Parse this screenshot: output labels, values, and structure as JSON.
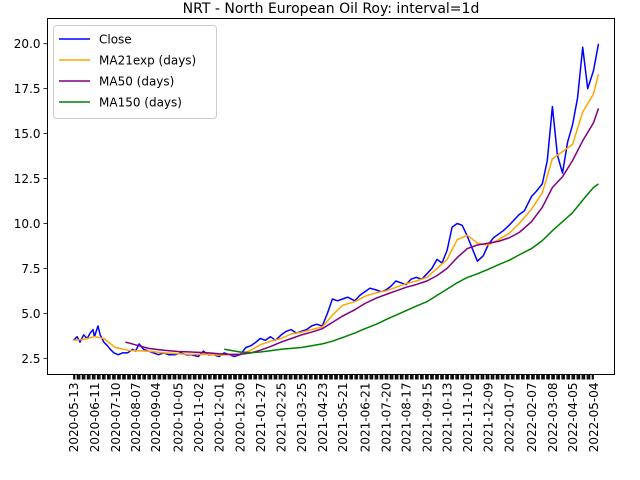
{
  "chart_data": {
    "type": "line",
    "title": "NRT - North European Oil Roy: interval=1d",
    "xlabel": "",
    "ylabel": "",
    "ylim": [
      1.6,
      21.4
    ],
    "grid": false,
    "legend_position": "upper-left",
    "x_tick_labels": [
      "2020-05-13",
      "2020-06-11",
      "2020-07-10",
      "2020-08-07",
      "2020-09-04",
      "2020-10-05",
      "2020-11-02",
      "2020-12-01",
      "2020-12-30",
      "2021-01-27",
      "2021-02-25",
      "2021-03-25",
      "2021-04-23",
      "2021-05-21",
      "2021-06-21",
      "2021-07-20",
      "2021-08-17",
      "2021-09-15",
      "2021-10-13",
      "2021-11-10",
      "2021-12-09",
      "2022-01-07",
      "2022-02-07",
      "2022-03-08",
      "2022-04-05",
      "2022-05-04"
    ],
    "y_ticks": [
      "2.5",
      "5.0",
      "7.5",
      "10.0",
      "12.5",
      "15.0",
      "17.5",
      "20.0"
    ],
    "y_tick_values": [
      2.5,
      5.0,
      7.5,
      10.0,
      12.5,
      15.0,
      17.5,
      20.0
    ],
    "series": [
      {
        "name": "Close",
        "color": "#0000ff",
        "points": [
          [
            "2020-05-13",
            3.5
          ],
          [
            "2020-05-18",
            3.7
          ],
          [
            "2020-05-22",
            3.4
          ],
          [
            "2020-05-27",
            3.8
          ],
          [
            "2020-06-01",
            3.6
          ],
          [
            "2020-06-05",
            3.9
          ],
          [
            "2020-06-09",
            4.1
          ],
          [
            "2020-06-11",
            3.7
          ],
          [
            "2020-06-16",
            4.3
          ],
          [
            "2020-06-19",
            3.8
          ],
          [
            "2020-06-24",
            3.4
          ],
          [
            "2020-06-29",
            3.2
          ],
          [
            "2020-07-03",
            3.0
          ],
          [
            "2020-07-08",
            2.8
          ],
          [
            "2020-07-14",
            2.7
          ],
          [
            "2020-07-20",
            2.8
          ],
          [
            "2020-07-27",
            2.8
          ],
          [
            "2020-08-03",
            3.0
          ],
          [
            "2020-08-07",
            2.9
          ],
          [
            "2020-08-12",
            3.3
          ],
          [
            "2020-08-18",
            3.0
          ],
          [
            "2020-08-25",
            2.9
          ],
          [
            "2020-09-01",
            2.8
          ],
          [
            "2020-09-08",
            2.7
          ],
          [
            "2020-09-15",
            2.8
          ],
          [
            "2020-09-22",
            2.7
          ],
          [
            "2020-10-01",
            2.7
          ],
          [
            "2020-10-09",
            2.8
          ],
          [
            "2020-10-16",
            2.7
          ],
          [
            "2020-10-23",
            2.7
          ],
          [
            "2020-11-02",
            2.6
          ],
          [
            "2020-11-09",
            2.9
          ],
          [
            "2020-11-16",
            2.7
          ],
          [
            "2020-11-23",
            2.7
          ],
          [
            "2020-12-01",
            2.6
          ],
          [
            "2020-12-08",
            2.8
          ],
          [
            "2020-12-15",
            2.7
          ],
          [
            "2020-12-22",
            2.6
          ],
          [
            "2020-12-30",
            2.7
          ],
          [
            "2021-01-07",
            3.1
          ],
          [
            "2021-01-14",
            3.2
          ],
          [
            "2021-01-21",
            3.4
          ],
          [
            "2021-01-27",
            3.6
          ],
          [
            "2021-02-03",
            3.5
          ],
          [
            "2021-02-10",
            3.7
          ],
          [
            "2021-02-17",
            3.5
          ],
          [
            "2021-02-25",
            3.8
          ],
          [
            "2021-03-04",
            4.0
          ],
          [
            "2021-03-11",
            4.1
          ],
          [
            "2021-03-18",
            3.9
          ],
          [
            "2021-03-25",
            4.0
          ],
          [
            "2021-04-01",
            4.1
          ],
          [
            "2021-04-08",
            4.3
          ],
          [
            "2021-04-15",
            4.4
          ],
          [
            "2021-04-23",
            4.3
          ],
          [
            "2021-04-30",
            5.0
          ],
          [
            "2021-05-07",
            5.8
          ],
          [
            "2021-05-14",
            5.7
          ],
          [
            "2021-05-21",
            5.8
          ],
          [
            "2021-05-28",
            5.9
          ],
          [
            "2021-06-07",
            5.7
          ],
          [
            "2021-06-14",
            6.0
          ],
          [
            "2021-06-21",
            6.2
          ],
          [
            "2021-06-28",
            6.4
          ],
          [
            "2021-07-07",
            6.3
          ],
          [
            "2021-07-14",
            6.2
          ],
          [
            "2021-07-20",
            6.3
          ],
          [
            "2021-07-27",
            6.5
          ],
          [
            "2021-08-03",
            6.8
          ],
          [
            "2021-08-10",
            6.7
          ],
          [
            "2021-08-17",
            6.6
          ],
          [
            "2021-08-24",
            6.9
          ],
          [
            "2021-08-31",
            7.0
          ],
          [
            "2021-09-08",
            6.9
          ],
          [
            "2021-09-15",
            7.2
          ],
          [
            "2021-09-22",
            7.5
          ],
          [
            "2021-09-29",
            8.0
          ],
          [
            "2021-10-06",
            7.8
          ],
          [
            "2021-10-13",
            8.5
          ],
          [
            "2021-10-20",
            9.8
          ],
          [
            "2021-10-27",
            10.0
          ],
          [
            "2021-11-03",
            9.9
          ],
          [
            "2021-11-10",
            9.3
          ],
          [
            "2021-11-17",
            8.6
          ],
          [
            "2021-11-24",
            7.9
          ],
          [
            "2021-12-02",
            8.2
          ],
          [
            "2021-12-09",
            8.8
          ],
          [
            "2021-12-16",
            9.2
          ],
          [
            "2021-12-23",
            9.4
          ],
          [
            "2021-12-30",
            9.6
          ],
          [
            "2022-01-07",
            9.9
          ],
          [
            "2022-01-14",
            10.2
          ],
          [
            "2022-01-21",
            10.5
          ],
          [
            "2022-01-28",
            10.7
          ],
          [
            "2022-02-07",
            11.5
          ],
          [
            "2022-02-14",
            11.8
          ],
          [
            "2022-02-22",
            12.2
          ],
          [
            "2022-03-01",
            13.5
          ],
          [
            "2022-03-08",
            16.5
          ],
          [
            "2022-03-15",
            13.8
          ],
          [
            "2022-03-22",
            12.8
          ],
          [
            "2022-03-29",
            14.5
          ],
          [
            "2022-04-05",
            15.5
          ],
          [
            "2022-04-12",
            17.0
          ],
          [
            "2022-04-19",
            19.8
          ],
          [
            "2022-04-26",
            17.5
          ],
          [
            "2022-05-04",
            18.5
          ],
          [
            "2022-05-11",
            20.0
          ]
        ]
      },
      {
        "name": "MA21exp (days)",
        "color": "#ffa500",
        "points": [
          [
            "2020-05-13",
            3.5
          ],
          [
            "2020-05-27",
            3.55
          ],
          [
            "2020-06-11",
            3.7
          ],
          [
            "2020-06-24",
            3.6
          ],
          [
            "2020-07-10",
            3.1
          ],
          [
            "2020-07-27",
            2.95
          ],
          [
            "2020-08-07",
            2.92
          ],
          [
            "2020-08-25",
            2.9
          ],
          [
            "2020-09-15",
            2.8
          ],
          [
            "2020-10-05",
            2.75
          ],
          [
            "2020-10-23",
            2.72
          ],
          [
            "2020-11-16",
            2.72
          ],
          [
            "2020-12-01",
            2.68
          ],
          [
            "2020-12-15",
            2.7
          ],
          [
            "2020-12-30",
            2.72
          ],
          [
            "2021-01-14",
            2.95
          ],
          [
            "2021-01-27",
            3.25
          ],
          [
            "2021-02-10",
            3.45
          ],
          [
            "2021-02-25",
            3.6
          ],
          [
            "2021-03-11",
            3.85
          ],
          [
            "2021-03-25",
            3.95
          ],
          [
            "2021-04-08",
            4.1
          ],
          [
            "2021-04-23",
            4.25
          ],
          [
            "2021-05-07",
            4.9
          ],
          [
            "2021-05-21",
            5.45
          ],
          [
            "2021-06-07",
            5.65
          ],
          [
            "2021-06-21",
            5.95
          ],
          [
            "2021-07-07",
            6.15
          ],
          [
            "2021-07-20",
            6.25
          ],
          [
            "2021-08-03",
            6.45
          ],
          [
            "2021-08-17",
            6.65
          ],
          [
            "2021-08-31",
            6.8
          ],
          [
            "2021-09-15",
            7.0
          ],
          [
            "2021-09-29",
            7.5
          ],
          [
            "2021-10-13",
            8.0
          ],
          [
            "2021-10-27",
            9.1
          ],
          [
            "2021-11-10",
            9.35
          ],
          [
            "2021-11-24",
            8.9
          ],
          [
            "2021-12-09",
            8.8
          ],
          [
            "2021-12-23",
            9.1
          ],
          [
            "2022-01-07",
            9.45
          ],
          [
            "2022-01-21",
            10.0
          ],
          [
            "2022-02-07",
            10.8
          ],
          [
            "2022-02-22",
            11.7
          ],
          [
            "2022-03-08",
            13.6
          ],
          [
            "2022-03-22",
            14.0
          ],
          [
            "2022-04-05",
            14.4
          ],
          [
            "2022-04-19",
            16.2
          ],
          [
            "2022-05-04",
            17.2
          ],
          [
            "2022-05-11",
            18.3
          ]
        ]
      },
      {
        "name": "MA50 (days)",
        "color": "#800080",
        "points": [
          [
            "2020-07-24",
            3.4
          ],
          [
            "2020-08-07",
            3.25
          ],
          [
            "2020-08-25",
            3.05
          ],
          [
            "2020-09-15",
            2.95
          ],
          [
            "2020-10-05",
            2.88
          ],
          [
            "2020-10-23",
            2.85
          ],
          [
            "2020-11-16",
            2.8
          ],
          [
            "2020-12-01",
            2.75
          ],
          [
            "2020-12-15",
            2.72
          ],
          [
            "2020-12-30",
            2.72
          ],
          [
            "2021-01-14",
            2.8
          ],
          [
            "2021-01-27",
            2.95
          ],
          [
            "2021-02-10",
            3.15
          ],
          [
            "2021-02-25",
            3.4
          ],
          [
            "2021-03-11",
            3.6
          ],
          [
            "2021-03-25",
            3.8
          ],
          [
            "2021-04-08",
            3.95
          ],
          [
            "2021-04-23",
            4.15
          ],
          [
            "2021-05-07",
            4.5
          ],
          [
            "2021-05-21",
            4.85
          ],
          [
            "2021-06-07",
            5.2
          ],
          [
            "2021-06-21",
            5.55
          ],
          [
            "2021-07-07",
            5.85
          ],
          [
            "2021-07-20",
            6.05
          ],
          [
            "2021-08-03",
            6.25
          ],
          [
            "2021-08-17",
            6.45
          ],
          [
            "2021-08-31",
            6.6
          ],
          [
            "2021-09-15",
            6.8
          ],
          [
            "2021-09-29",
            7.1
          ],
          [
            "2021-10-13",
            7.5
          ],
          [
            "2021-10-27",
            8.1
          ],
          [
            "2021-11-10",
            8.6
          ],
          [
            "2021-11-24",
            8.8
          ],
          [
            "2021-12-09",
            8.9
          ],
          [
            "2021-12-23",
            9.0
          ],
          [
            "2022-01-07",
            9.2
          ],
          [
            "2022-01-21",
            9.5
          ],
          [
            "2022-02-07",
            10.1
          ],
          [
            "2022-02-22",
            10.9
          ],
          [
            "2022-03-08",
            12.0
          ],
          [
            "2022-03-22",
            12.6
          ],
          [
            "2022-04-05",
            13.5
          ],
          [
            "2022-04-19",
            14.6
          ],
          [
            "2022-05-04",
            15.6
          ],
          [
            "2022-05-11",
            16.4
          ]
        ]
      },
      {
        "name": "MA150 (days)",
        "color": "#008000",
        "points": [
          [
            "2020-12-08",
            3.0
          ],
          [
            "2020-12-30",
            2.85
          ],
          [
            "2021-01-14",
            2.82
          ],
          [
            "2021-01-27",
            2.85
          ],
          [
            "2021-02-10",
            2.92
          ],
          [
            "2021-02-25",
            3.0
          ],
          [
            "2021-03-11",
            3.05
          ],
          [
            "2021-03-25",
            3.1
          ],
          [
            "2021-04-08",
            3.2
          ],
          [
            "2021-04-23",
            3.3
          ],
          [
            "2021-05-07",
            3.45
          ],
          [
            "2021-05-21",
            3.65
          ],
          [
            "2021-06-07",
            3.9
          ],
          [
            "2021-06-21",
            4.15
          ],
          [
            "2021-07-07",
            4.4
          ],
          [
            "2021-07-20",
            4.65
          ],
          [
            "2021-08-03",
            4.9
          ],
          [
            "2021-08-17",
            5.15
          ],
          [
            "2021-08-31",
            5.4
          ],
          [
            "2021-09-15",
            5.65
          ],
          [
            "2021-09-29",
            6.0
          ],
          [
            "2021-10-13",
            6.35
          ],
          [
            "2021-10-27",
            6.7
          ],
          [
            "2021-11-10",
            7.0
          ],
          [
            "2021-11-24",
            7.2
          ],
          [
            "2021-12-09",
            7.45
          ],
          [
            "2021-12-23",
            7.7
          ],
          [
            "2022-01-07",
            7.95
          ],
          [
            "2022-01-21",
            8.25
          ],
          [
            "2022-02-07",
            8.6
          ],
          [
            "2022-02-22",
            9.05
          ],
          [
            "2022-03-08",
            9.6
          ],
          [
            "2022-03-22",
            10.1
          ],
          [
            "2022-04-05",
            10.6
          ],
          [
            "2022-04-19",
            11.3
          ],
          [
            "2022-05-04",
            12.0
          ],
          [
            "2022-05-11",
            12.2
          ]
        ]
      }
    ]
  }
}
